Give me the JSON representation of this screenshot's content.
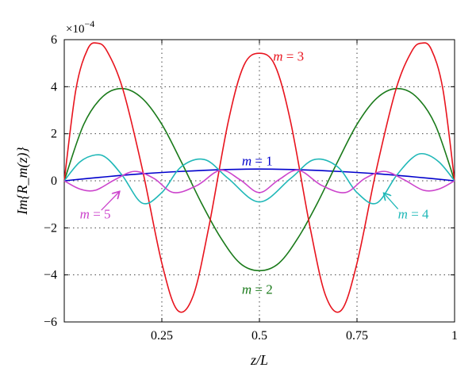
{
  "chart_data": {
    "type": "line",
    "xlabel": "z/L",
    "ylabel": "Im{R_m(z)}",
    "y_multiplier": "×10",
    "y_multiplier_exp": "−4",
    "xlim": [
      0,
      1
    ],
    "ylim": [
      -6,
      6
    ],
    "x_ticks": [
      0.25,
      0.5,
      0.75,
      1
    ],
    "x_tick_labels": [
      "0.25",
      "0.5",
      "0.75",
      "1"
    ],
    "y_ticks": [
      -6,
      -4,
      -2,
      0,
      2,
      4,
      6
    ],
    "y_tick_labels": [
      "−6",
      "−4",
      "−2",
      "0",
      "2",
      "4",
      "6"
    ],
    "grid": true,
    "series": [
      {
        "name": "m = 1",
        "color": "#0000cc",
        "x": [
          0,
          0.1,
          0.2,
          0.3,
          0.4,
          0.5,
          0.6,
          0.7,
          0.8,
          0.9,
          1
        ],
        "y": [
          0,
          0.16,
          0.3,
          0.4,
          0.47,
          0.5,
          0.47,
          0.4,
          0.3,
          0.16,
          0
        ]
      },
      {
        "name": "m = 2",
        "color": "#1a7a1a",
        "x": [
          0,
          0.05,
          0.1,
          0.15,
          0.2,
          0.25,
          0.3,
          0.35,
          0.4,
          0.45,
          0.5,
          0.55,
          0.6,
          0.65,
          0.7,
          0.75,
          0.8,
          0.85,
          0.9,
          0.95,
          1
        ],
        "y": [
          0,
          2.4,
          3.6,
          3.92,
          3.5,
          2.4,
          0.8,
          -0.9,
          -2.4,
          -3.5,
          -3.82,
          -3.5,
          -2.4,
          -0.9,
          0.8,
          2.4,
          3.5,
          3.92,
          3.6,
          2.4,
          0
        ]
      },
      {
        "name": "m = 3",
        "color": "#e8141e",
        "x": [
          0,
          0.03,
          0.06,
          0.085,
          0.11,
          0.15,
          0.2,
          0.25,
          0.29,
          0.33,
          0.37,
          0.42,
          0.46,
          0.5,
          0.54,
          0.58,
          0.63,
          0.67,
          0.71,
          0.75,
          0.8,
          0.85,
          0.89,
          0.915,
          0.94,
          0.97,
          1
        ],
        "y": [
          0,
          3.9,
          5.6,
          5.85,
          5.5,
          3.9,
          0.5,
          -3.5,
          -5.5,
          -4.9,
          -2.0,
          2.5,
          4.9,
          5.42,
          4.9,
          2.5,
          -2.0,
          -4.9,
          -5.5,
          -3.5,
          0.5,
          3.9,
          5.5,
          5.85,
          5.6,
          3.9,
          0
        ]
      },
      {
        "name": "m = 4",
        "color": "#20b8b8",
        "x": [
          0,
          0.04,
          0.08,
          0.11,
          0.15,
          0.2,
          0.25,
          0.3,
          0.36,
          0.42,
          0.5,
          0.58,
          0.64,
          0.7,
          0.75,
          0.8,
          0.85,
          0.89,
          0.92,
          0.96,
          1
        ],
        "y": [
          0,
          0.8,
          1.1,
          0.95,
          0.2,
          -0.95,
          -0.5,
          0.6,
          0.9,
          0.1,
          -0.9,
          0.1,
          0.9,
          0.6,
          -0.5,
          -0.95,
          0.2,
          0.95,
          1.15,
          0.8,
          0
        ]
      },
      {
        "name": "m = 5",
        "color": "#cc44cc",
        "x": [
          0,
          0.04,
          0.08,
          0.13,
          0.18,
          0.23,
          0.28,
          0.34,
          0.4,
          0.45,
          0.5,
          0.55,
          0.6,
          0.66,
          0.72,
          0.77,
          0.82,
          0.87,
          0.92,
          0.96,
          1
        ],
        "y": [
          0,
          -0.35,
          -0.4,
          0.05,
          0.4,
          0.1,
          -0.5,
          -0.2,
          0.45,
          0.05,
          -0.5,
          0.05,
          0.45,
          -0.2,
          -0.5,
          0.1,
          0.4,
          0.05,
          -0.4,
          -0.35,
          0
        ]
      }
    ],
    "annotations": [
      {
        "text": "m = 3",
        "color": "#e8141e",
        "x": 0.535,
        "y": 5.1
      },
      {
        "text": "m = 1",
        "color": "#0000cc",
        "x": 0.455,
        "y": 0.65
      },
      {
        "text": "m = 2",
        "color": "#1a7a1a",
        "x": 0.455,
        "y": -4.8
      },
      {
        "text": "m = 5",
        "color": "#cc44cc",
        "x": 0.04,
        "y": -1.6
      },
      {
        "text": "m = 4",
        "color": "#20b8b8",
        "x": 0.855,
        "y": -1.6
      }
    ],
    "arrows": [
      {
        "color": "#cc44cc",
        "from": [
          0.095,
          -1.25
        ],
        "to": [
          0.14,
          -0.48
        ]
      },
      {
        "color": "#20b8b8",
        "from": [
          0.855,
          -1.2
        ],
        "to": [
          0.82,
          -0.55
        ]
      }
    ]
  }
}
